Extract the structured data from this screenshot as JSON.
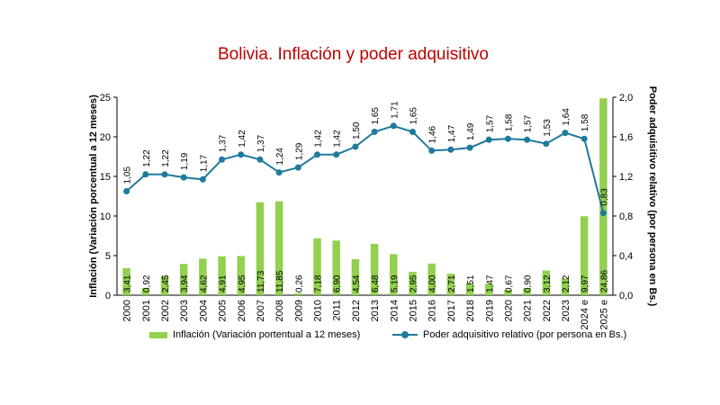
{
  "chart_data": {
    "type": "bar+line",
    "title": "Bolivia. Inflación y poder adquisitivo",
    "categories": [
      "2000",
      "2001",
      "2002",
      "2003",
      "2004",
      "2005",
      "2006",
      "2007",
      "2008",
      "2009",
      "2010",
      "2011",
      "2012",
      "2013",
      "2014",
      "2015",
      "2016",
      "2017",
      "2018",
      "2019",
      "2020",
      "2021",
      "2022",
      "2023",
      "2024 e",
      "2025 e"
    ],
    "series": [
      {
        "name": "Inflación (Variación portentual a 12 meses)",
        "type": "bar",
        "axis": "left",
        "color": "#92d050",
        "values": [
          3.41,
          0.92,
          2.45,
          3.94,
          4.62,
          4.91,
          4.95,
          11.73,
          11.85,
          0.26,
          7.18,
          6.9,
          4.54,
          6.48,
          5.19,
          2.95,
          4.0,
          2.71,
          1.51,
          1.47,
          0.67,
          0.9,
          3.12,
          2.12,
          9.97,
          24.86
        ],
        "labels": [
          "3,41",
          "0,92",
          "2,45",
          "3,94",
          "4,62",
          "4,91",
          "4,95",
          "11,73",
          "11,85",
          "0,26",
          "7,18",
          "6,90",
          "4,54",
          "6,48",
          "5,19",
          "2,95",
          "4,00",
          "2,71",
          "1,51",
          "1,47",
          "0,67",
          "0,90",
          "3,12",
          "2,12",
          "9,97",
          "24,86"
        ]
      },
      {
        "name": "Poder adquisitivo relativo (por persona en Bs.)",
        "type": "line",
        "axis": "right",
        "color": "#1f7a9c",
        "values": [
          1.05,
          1.22,
          1.22,
          1.19,
          1.17,
          1.37,
          1.42,
          1.37,
          1.24,
          1.29,
          1.42,
          1.42,
          1.5,
          1.65,
          1.71,
          1.65,
          1.46,
          1.47,
          1.49,
          1.57,
          1.58,
          1.57,
          1.53,
          1.64,
          1.58,
          0.83
        ],
        "labels": [
          "1,05",
          "1,22",
          "1,22",
          "1,19",
          "1,17",
          "1,37",
          "1,42",
          "1,37",
          "1,24",
          "1,29",
          "1,42",
          "1,42",
          "1,50",
          "1,65",
          "1,71",
          "1,65",
          "1,46",
          "1,47",
          "1,49",
          "1,57",
          "1,58",
          "1,57",
          "1,53",
          "1,64",
          "1,58",
          "0,83"
        ]
      }
    ],
    "ylabel": "Inflación (Variación porcentual a 12 meses)",
    "y2label": "Poder adquisitivo relativo (por persona en Bs.)",
    "ylim": [
      0,
      25
    ],
    "y2lim": [
      0,
      2.0
    ],
    "yticks": [
      "0",
      "5",
      "10",
      "15",
      "20",
      "25"
    ],
    "y2ticks": [
      "0,0",
      "0,4",
      "0,8",
      "1,2",
      "1,6",
      "2,0"
    ],
    "grid": false,
    "legend_position": "bottom"
  }
}
